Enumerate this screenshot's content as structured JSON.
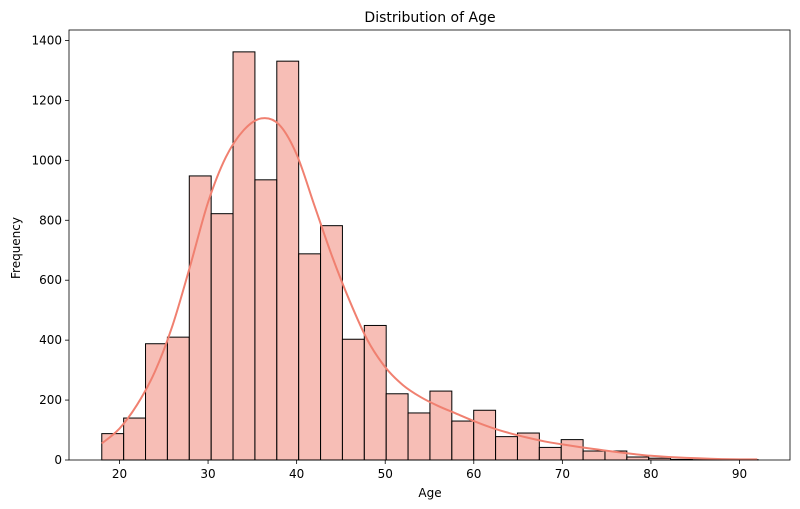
{
  "chart_data": {
    "type": "bar",
    "title": "Distribution of Age",
    "xlabel": "Age",
    "ylabel": "Frequency",
    "xlim": [
      14.3,
      95.7
    ],
    "ylim": [
      0,
      1435
    ],
    "grid": false,
    "xticks": [
      20,
      30,
      40,
      50,
      60,
      70,
      80,
      90
    ],
    "yticks": [
      0,
      200,
      400,
      600,
      800,
      1000,
      1200,
      1400
    ],
    "bin_start": 18,
    "bin_width": 2.47,
    "values": [
      88,
      140,
      388,
      410,
      948,
      822,
      1362,
      935,
      1331,
      688,
      782,
      403,
      449,
      221,
      157,
      230,
      130,
      166,
      78,
      90,
      42,
      68,
      30,
      30,
      10,
      6,
      2,
      1,
      1,
      1
    ],
    "kde": {
      "x": [
        18,
        20,
        22,
        24,
        26,
        28,
        30,
        32,
        34,
        36,
        38,
        40,
        42,
        44,
        46,
        48,
        50,
        52,
        54,
        56,
        58,
        60,
        62,
        64,
        66,
        68,
        70,
        72,
        74,
        76,
        78,
        80,
        82,
        84,
        86,
        88,
        90,
        92
      ],
      "y": [
        55,
        105,
        185,
        295,
        450,
        650,
        860,
        1010,
        1100,
        1140,
        1120,
        1020,
        850,
        680,
        530,
        400,
        310,
        250,
        210,
        180,
        155,
        130,
        108,
        90,
        75,
        62,
        52,
        43,
        35,
        27,
        20,
        14,
        10,
        7,
        5,
        3,
        2,
        2
      ]
    },
    "colors": {
      "bar_fill": "#f4a89e",
      "bar_fill_opacity": 0.75,
      "bar_edge": "#000000",
      "kde_line": "#f08070"
    }
  }
}
